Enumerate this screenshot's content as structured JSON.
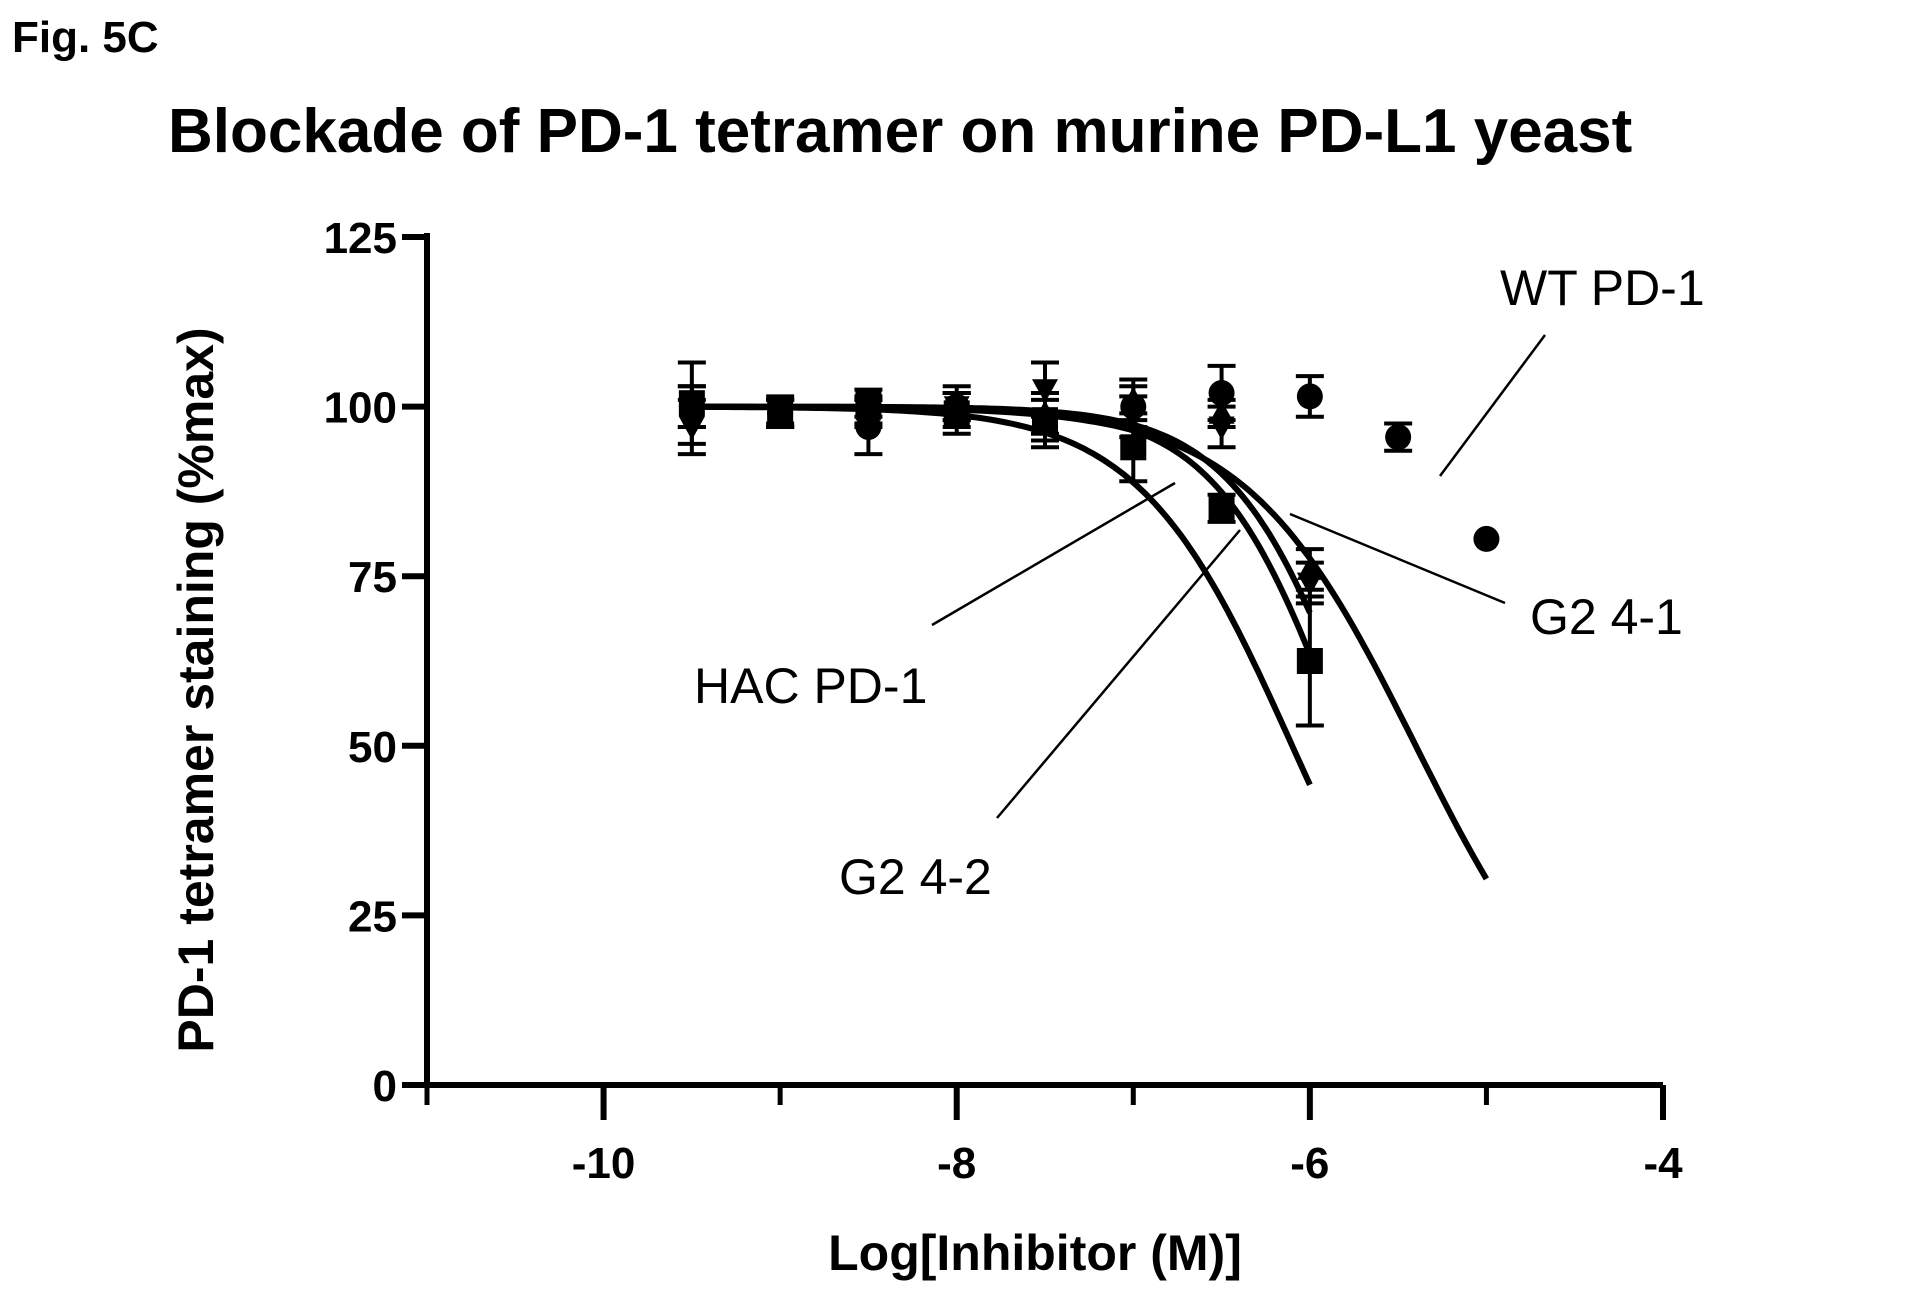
{
  "figure": {
    "label": "Fig. 5C"
  },
  "chart_data": {
    "type": "scatter",
    "title": "Blockade of PD-1 tetramer on murine PD-L1 yeast",
    "xlabel": "Log[Inhibitor (M)]",
    "ylabel": "PD-1 tetramer staining (%max)",
    "xlim": [
      -11,
      -4
    ],
    "ylim": [
      0,
      125
    ],
    "xticks": [
      -10,
      -8,
      -6,
      -4
    ],
    "yticks": [
      0,
      25,
      50,
      75,
      100,
      125
    ],
    "grid": false,
    "legend": "none",
    "series": [
      {
        "name": "WT PD-1",
        "marker": "circle",
        "x": [
          -9.5,
          -9.0,
          -8.5,
          -8.0,
          -7.5,
          -7.0,
          -6.5,
          -6.0,
          -5.5,
          -5.0
        ],
        "y": [
          100,
          99,
          97,
          100,
          98,
          100,
          102,
          101.5,
          95.5,
          80.5
        ],
        "err": [
          3,
          2,
          4,
          2,
          4,
          3,
          4,
          3,
          2,
          0
        ],
        "ic50": -5.4,
        "hill": 0.9
      },
      {
        "name": "G2 4-2",
        "marker": "square",
        "x": [
          -9.5,
          -9.0,
          -8.5,
          -8.0,
          -7.5,
          -7.0,
          -6.5,
          -6.0
        ],
        "y": [
          100.5,
          99,
          100.5,
          99,
          98,
          94,
          85,
          62.5
        ],
        "err": [
          6,
          2,
          2,
          3,
          3,
          5,
          2,
          9.5
        ],
        "ic50": -6.1,
        "hill": 1.0
      },
      {
        "name": "G2 4-1",
        "marker": "triangle-down",
        "x": [
          -9.5,
          -9.0,
          -8.5,
          -8.0,
          -7.5,
          -7.0,
          -6.5,
          -6.0
        ],
        "y": [
          97,
          99,
          99,
          100,
          102.5,
          98.5,
          97,
          74
        ],
        "err": [
          4,
          2,
          2,
          3,
          4,
          3,
          3,
          3
        ],
        "ic50": -5.8,
        "hill": 1.2
      },
      {
        "name": "HAC PD-1",
        "marker": "triangle-up",
        "x": [
          -9.5,
          -9.0,
          -8.5,
          -8.0,
          -7.5,
          -7.0,
          -6.5,
          -6.0
        ],
        "y": [
          100,
          99.5,
          99.5,
          100,
          99,
          101,
          99,
          76
        ],
        "err": [
          3,
          2,
          2,
          2,
          3,
          3,
          2,
          3
        ],
        "ic50": -5.7,
        "hill": 1.2
      }
    ],
    "annotations": [
      {
        "text": "WT PD-1",
        "series": "WT PD-1"
      },
      {
        "text": "G2 4-1",
        "series": "G2 4-1"
      },
      {
        "text": "HAC PD-1",
        "series": "HAC PD-1"
      },
      {
        "text": "G2 4-2",
        "series": "G2 4-2"
      }
    ]
  }
}
